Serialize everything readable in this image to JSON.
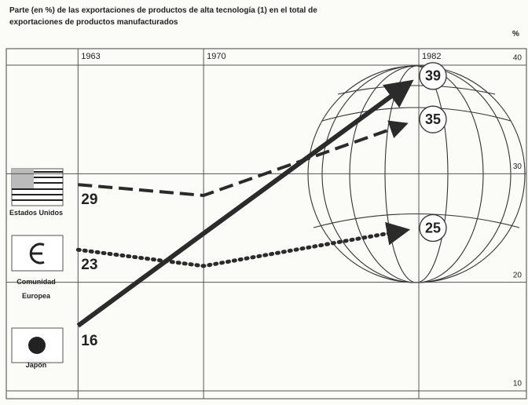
{
  "chart_data": {
    "type": "line",
    "title": "Parte (en %) de las exportaciones de productos de alta tecnología (1) en el total de exportaciones de productos manufacturados",
    "y_label": "%",
    "x": [
      1963,
      1970,
      1982
    ],
    "xlim": [
      1959,
      1988
    ],
    "xticks": [
      1963,
      1970,
      1982
    ],
    "ylim": [
      10,
      40
    ],
    "yticks": [
      40,
      30,
      20,
      10
    ],
    "grid": true,
    "series": [
      {
        "name": "Estados Unidos",
        "color": "#2b2b2b",
        "style": "dashed",
        "values": [
          29,
          28,
          35
        ]
      },
      {
        "name": "Comunidad Europea",
        "color": "#2b2b2b",
        "style": "dotted",
        "values": [
          23,
          21.5,
          25
        ]
      },
      {
        "name": "Japón",
        "color": "#2b2b2b",
        "style": "solid",
        "values": [
          16,
          24.5,
          39
        ]
      }
    ]
  }
}
